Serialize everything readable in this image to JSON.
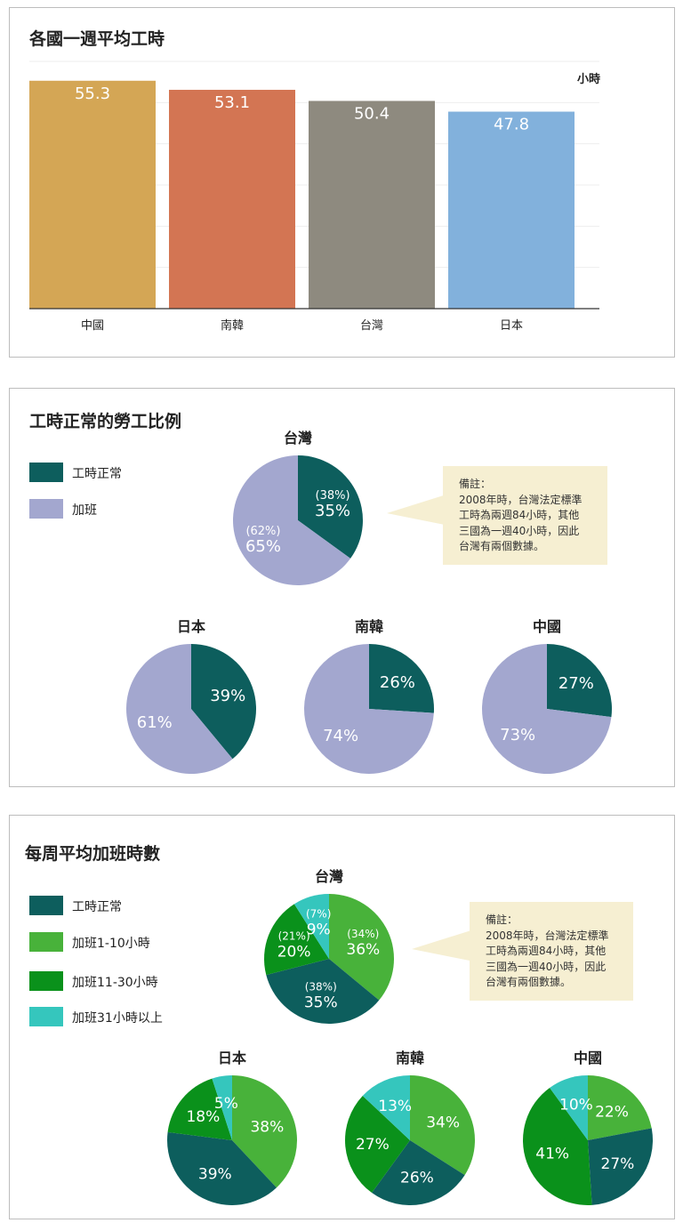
{
  "chart_data": [
    {
      "type": "bar",
      "title": "各國一週平均工時",
      "unit": "小時",
      "categories": [
        "中國",
        "南韓",
        "台灣",
        "日本"
      ],
      "values": [
        55.3,
        53.1,
        50.4,
        47.8
      ],
      "colors": [
        "#d4a655",
        "#d37553",
        "#8e8a7f",
        "#82b1dc"
      ],
      "ylim": [
        0,
        60
      ],
      "grid": true
    },
    {
      "type": "pie",
      "title": "工時正常的勞工比例",
      "legend": [
        {
          "label": "工時正常",
          "color": "#0d5e5d"
        },
        {
          "label": "加班",
          "color": "#a3a7cf"
        }
      ],
      "pies": [
        {
          "name": "台灣",
          "slices": [
            {
              "label": "工時正常",
              "value": 35,
              "alt": 38,
              "text": "35%",
              "alt_text": "(38%)",
              "color": "#0d5e5d"
            },
            {
              "label": "加班",
              "value": 65,
              "alt": 62,
              "text": "65%",
              "alt_text": "(62%)",
              "color": "#a3a7cf"
            }
          ]
        },
        {
          "name": "日本",
          "slices": [
            {
              "label": "工時正常",
              "value": 39,
              "text": "39%",
              "color": "#0d5e5d"
            },
            {
              "label": "加班",
              "value": 61,
              "text": "61%",
              "color": "#a3a7cf"
            }
          ]
        },
        {
          "name": "南韓",
          "slices": [
            {
              "label": "工時正常",
              "value": 26,
              "text": "26%",
              "color": "#0d5e5d"
            },
            {
              "label": "加班",
              "value": 74,
              "text": "74%",
              "color": "#a3a7cf"
            }
          ]
        },
        {
          "name": "中國",
          "slices": [
            {
              "label": "工時正常",
              "value": 27,
              "text": "27%",
              "color": "#0d5e5d"
            },
            {
              "label": "加班",
              "value": 73,
              "text": "73%",
              "color": "#a3a7cf"
            }
          ]
        }
      ],
      "note": [
        "備註：",
        "2008年時，台灣法定標準",
        "工時為兩週84小時，其他",
        "三國為一週40小時，因此",
        "台灣有兩個數據。"
      ]
    },
    {
      "type": "pie",
      "title": "每周平均加班時數",
      "legend": [
        {
          "label": "工時正常",
          "color": "#0d5e5d"
        },
        {
          "label": "加班1-10小時",
          "color": "#48b23a"
        },
        {
          "label": "加班11-30小時",
          "color": "#0a911b"
        },
        {
          "label": "加班31小時以上",
          "color": "#35c6bd"
        }
      ],
      "pies": [
        {
          "name": "台灣",
          "slices": [
            {
              "label": "加班1-10小時",
              "value": 36,
              "alt": 34,
              "text": "36%",
              "alt_text": "(34%)",
              "color": "#48b23a"
            },
            {
              "label": "工時正常",
              "value": 35,
              "alt": 38,
              "text": "35%",
              "alt_text": "(38%)",
              "color": "#0d5e5d"
            },
            {
              "label": "加班11-30小時",
              "value": 20,
              "alt": 21,
              "text": "20%",
              "alt_text": "(21%)",
              "color": "#0a911b"
            },
            {
              "label": "加班31小時以上",
              "value": 9,
              "alt": 7,
              "text": "9%",
              "alt_text": "(7%)",
              "color": "#35c6bd"
            }
          ]
        },
        {
          "name": "日本",
          "slices": [
            {
              "label": "加班1-10小時",
              "value": 38,
              "text": "38%",
              "color": "#48b23a"
            },
            {
              "label": "工時正常",
              "value": 39,
              "text": "39%",
              "color": "#0d5e5d"
            },
            {
              "label": "加班11-30小時",
              "value": 18,
              "text": "18%",
              "color": "#0a911b"
            },
            {
              "label": "加班31小時以上",
              "value": 5,
              "text": "5%",
              "color": "#35c6bd"
            }
          ]
        },
        {
          "name": "南韓",
          "slices": [
            {
              "label": "加班1-10小時",
              "value": 34,
              "text": "34%",
              "color": "#48b23a"
            },
            {
              "label": "工時正常",
              "value": 26,
              "text": "26%",
              "color": "#0d5e5d"
            },
            {
              "label": "加班11-30小時",
              "value": 27,
              "text": "27%",
              "color": "#0a911b"
            },
            {
              "label": "加班31小時以上",
              "value": 13,
              "text": "13%",
              "color": "#35c6bd"
            }
          ]
        },
        {
          "name": "中國",
          "slices": [
            {
              "label": "加班1-10小時",
              "value": 22,
              "text": "22%",
              "color": "#48b23a"
            },
            {
              "label": "工時正常",
              "value": 27,
              "text": "27%",
              "color": "#0d5e5d"
            },
            {
              "label": "加班11-30小時",
              "value": 41,
              "text": "41%",
              "color": "#0a911b"
            },
            {
              "label": "加班31小時以上",
              "value": 10,
              "text": "10%",
              "color": "#35c6bd"
            }
          ]
        }
      ],
      "note": [
        "備註：",
        "2008年時，台灣法定標準",
        "工時為兩週84小時，其他",
        "三國為一週40小時，因此",
        "台灣有兩個數據。"
      ]
    }
  ]
}
